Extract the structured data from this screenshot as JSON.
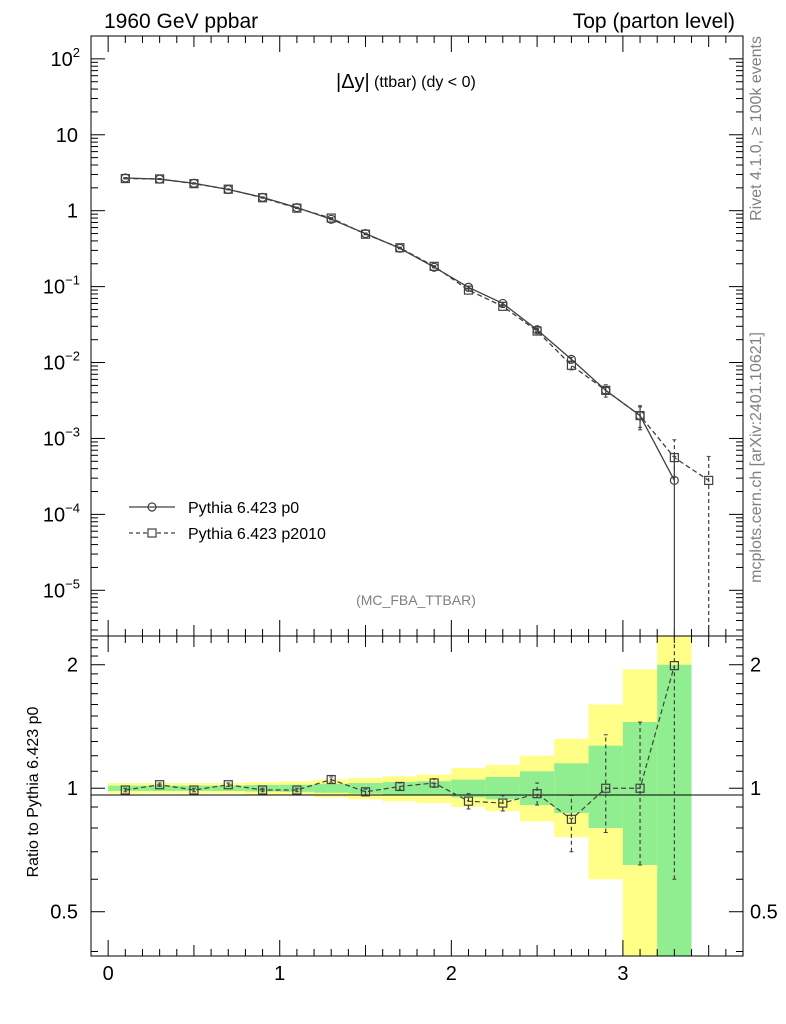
{
  "header": {
    "left": "1960 GeV ppbar",
    "right": "Top (parton level)"
  },
  "side_labels": {
    "rivet": "Rivet 4.1.0, ≥ 100k events",
    "mcplots": "mcplots.cern.ch [arXiv:2401.10621]"
  },
  "chart_data": {
    "type": "line",
    "title": "|Δy| (ttbar) (dy < 0)",
    "title_main": "|Δy|",
    "title_sub": "(ttbar) (dy < 0)",
    "analysis": "(MC_FBA_TTBAR)",
    "xlabel": "",
    "xlim": [
      -0.1,
      3.7
    ],
    "x_ticks": [
      0,
      1,
      2,
      3
    ],
    "main_panel": {
      "yscale": "log",
      "ylim": [
        2.5e-06,
        200
      ],
      "y_ticks": [
        {
          "value": 100,
          "base": "10",
          "exp": "2"
        },
        {
          "value": 10,
          "base": "10",
          "exp": ""
        },
        {
          "value": 1,
          "base": "1",
          "exp": ""
        },
        {
          "value": 0.1,
          "base": "10",
          "exp": "−1"
        },
        {
          "value": 0.01,
          "base": "10",
          "exp": "−2"
        },
        {
          "value": 0.001,
          "base": "10",
          "exp": "−3"
        },
        {
          "value": 0.0001,
          "base": "10",
          "exp": "−4"
        },
        {
          "value": 1e-05,
          "base": "10",
          "exp": "−5"
        }
      ],
      "series": [
        {
          "name": "Pythia 6.423 p0",
          "marker": "circle",
          "dash": "solid",
          "x": [
            0.1,
            0.3,
            0.5,
            0.7,
            0.9,
            1.1,
            1.3,
            1.5,
            1.7,
            1.9,
            2.1,
            2.3,
            2.5,
            2.7,
            2.9,
            3.1,
            3.3
          ],
          "values": [
            2.7,
            2.6,
            2.3,
            1.9,
            1.5,
            1.1,
            0.77,
            0.5,
            0.32,
            0.18,
            0.098,
            0.06,
            0.027,
            0.011,
            0.0043,
            0.002,
            0.00028
          ],
          "err_lo": [
            0.03,
            0.03,
            0.03,
            0.02,
            0.02,
            0.015,
            0.012,
            0.008,
            0.006,
            0.004,
            0.003,
            0.002,
            0.0012,
            0.0007,
            0.0004,
            0.0006,
            0.000279
          ],
          "err_hi": [
            0.03,
            0.03,
            0.03,
            0.02,
            0.02,
            0.015,
            0.012,
            0.008,
            0.006,
            0.004,
            0.003,
            0.002,
            0.0012,
            0.0007,
            0.0004,
            0.0006,
            0.0003
          ]
        },
        {
          "name": "Pythia 6.423 p2010",
          "marker": "square",
          "dash": "dashed",
          "x": [
            0.1,
            0.3,
            0.5,
            0.7,
            0.9,
            1.1,
            1.3,
            1.5,
            1.7,
            1.9,
            2.1,
            2.3,
            2.5,
            2.7,
            2.9,
            3.1,
            3.3,
            3.5
          ],
          "values": [
            2.65,
            2.62,
            2.27,
            1.92,
            1.48,
            1.08,
            0.8,
            0.49,
            0.325,
            0.185,
            0.09,
            0.055,
            0.026,
            0.0092,
            0.0043,
            0.002,
            0.00056,
            0.00028
          ],
          "err_lo": [
            0.03,
            0.03,
            0.03,
            0.02,
            0.02,
            0.015,
            0.012,
            0.008,
            0.006,
            0.004,
            0.003,
            0.002,
            0.0012,
            0.0012,
            0.0008,
            0.0007,
            0.00025,
            0.000279
          ],
          "err_hi": [
            0.03,
            0.03,
            0.03,
            0.02,
            0.02,
            0.015,
            0.012,
            0.008,
            0.006,
            0.004,
            0.003,
            0.002,
            0.0012,
            0.0012,
            0.0008,
            0.0007,
            0.0004,
            0.0003
          ]
        }
      ]
    },
    "ratio_panel": {
      "ylabel": "Ratio to Pythia 6.423 p0",
      "yscale": "log",
      "ylim": [
        0.39,
        2.35
      ],
      "y_ticks": [
        {
          "value": 2,
          "label": "2"
        },
        {
          "value": 1,
          "label": "1"
        },
        {
          "value": 0.5,
          "label": "0.5"
        }
      ],
      "bins": [
        [
          0,
          0.2
        ],
        [
          0.2,
          0.4
        ],
        [
          0.4,
          0.6
        ],
        [
          0.6,
          0.8
        ],
        [
          0.8,
          1.0
        ],
        [
          1.0,
          1.2
        ],
        [
          1.2,
          1.4
        ],
        [
          1.4,
          1.6
        ],
        [
          1.6,
          1.8
        ],
        [
          1.8,
          2.0
        ],
        [
          2.0,
          2.2
        ],
        [
          2.2,
          2.4
        ],
        [
          2.4,
          2.6
        ],
        [
          2.6,
          2.8
        ],
        [
          2.8,
          3.0
        ],
        [
          3.0,
          3.2
        ],
        [
          3.2,
          3.4
        ]
      ],
      "band_green": [
        [
          0.985,
          1.015
        ],
        [
          0.985,
          1.015
        ],
        [
          0.985,
          1.015
        ],
        [
          0.985,
          1.015
        ],
        [
          0.982,
          1.018
        ],
        [
          0.98,
          1.02
        ],
        [
          0.975,
          1.025
        ],
        [
          0.97,
          1.03
        ],
        [
          0.965,
          1.035
        ],
        [
          0.96,
          1.04
        ],
        [
          0.95,
          1.05
        ],
        [
          0.94,
          1.065
        ],
        [
          0.91,
          1.1
        ],
        [
          0.87,
          1.15
        ],
        [
          0.8,
          1.27
        ],
        [
          0.65,
          1.45
        ],
        [
          0.3,
          2.0
        ]
      ],
      "band_yellow": [
        [
          0.97,
          1.03
        ],
        [
          0.97,
          1.03
        ],
        [
          0.97,
          1.03
        ],
        [
          0.97,
          1.03
        ],
        [
          0.965,
          1.035
        ],
        [
          0.96,
          1.04
        ],
        [
          0.95,
          1.05
        ],
        [
          0.94,
          1.06
        ],
        [
          0.93,
          1.07
        ],
        [
          0.92,
          1.08
        ],
        [
          0.9,
          1.12
        ],
        [
          0.88,
          1.14
        ],
        [
          0.83,
          1.2
        ],
        [
          0.76,
          1.32
        ],
        [
          0.6,
          1.6
        ],
        [
          0.3,
          1.95
        ],
        [
          0.3,
          3.0
        ]
      ],
      "ratio_series": {
        "name": "Pythia 6.423 p2010",
        "x": [
          0.1,
          0.3,
          0.5,
          0.7,
          0.9,
          1.1,
          1.3,
          1.5,
          1.7,
          1.9,
          2.1,
          2.3,
          2.5,
          2.7,
          2.9,
          3.1,
          3.3
        ],
        "values": [
          0.99,
          1.02,
          0.99,
          1.02,
          0.99,
          0.99,
          1.05,
          0.98,
          1.01,
          1.03,
          0.93,
          0.92,
          0.97,
          0.84,
          1.0,
          1.0,
          1.99
        ],
        "err_lo": [
          0.01,
          0.01,
          0.01,
          0.01,
          0.01,
          0.01,
          0.015,
          0.015,
          0.02,
          0.025,
          0.04,
          0.04,
          0.06,
          0.14,
          0.22,
          0.35,
          1.39
        ],
        "err_hi": [
          0.01,
          0.01,
          0.01,
          0.01,
          0.01,
          0.01,
          0.015,
          0.015,
          0.02,
          0.025,
          0.04,
          0.04,
          0.06,
          0.12,
          0.35,
          0.45,
          0.5
        ]
      }
    },
    "colors": {
      "line": "#404040",
      "green": "#90ee90",
      "yellow": "#ffff88",
      "label_gray": "#808080"
    }
  }
}
